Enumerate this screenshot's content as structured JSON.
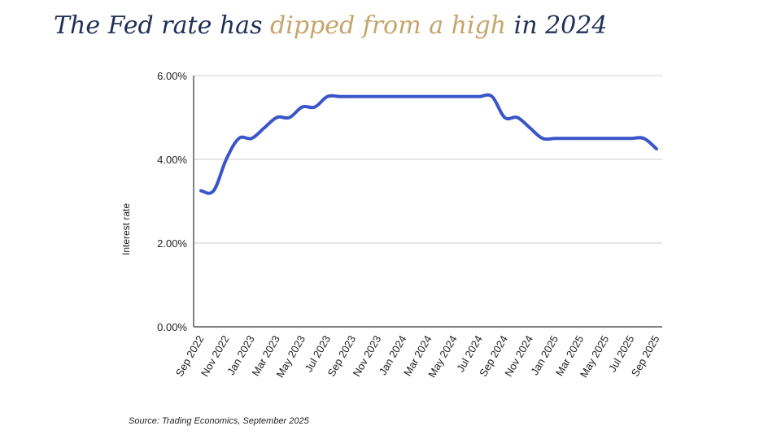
{
  "title": {
    "part1": "The Fed rate has ",
    "highlight": "dipped from a high",
    "part2": " in 2024"
  },
  "colors": {
    "title": "#1f2f57",
    "highlight": "#c6a56b",
    "line": "#3a55c8",
    "grid": "#cccccc"
  },
  "source": "Source: Trading Economics, September 2025",
  "chart_data": {
    "type": "line",
    "title": "",
    "xlabel": "",
    "ylabel": "Interest rate",
    "ylim": [
      0,
      6
    ],
    "yticks": [
      {
        "value": 0,
        "label": "0.00%"
      },
      {
        "value": 2,
        "label": "2.00%"
      },
      {
        "value": 4,
        "label": "4.00%"
      },
      {
        "value": 6,
        "label": "6.00%"
      }
    ],
    "categories": [
      "Sep 2022",
      "Nov 2022",
      "Jan 2023",
      "Mar 2023",
      "May 2023",
      "Jul 2023",
      "Sep 2023",
      "Nov 2023",
      "Jan 2024",
      "Mar 2024",
      "May 2024",
      "Jul 2024",
      "Sep 2024",
      "Nov 2024",
      "Jan 2025",
      "Mar 2025",
      "May 2025",
      "Jul 2025",
      "Sep 2025"
    ],
    "grid": true,
    "legend": "none",
    "series": [
      {
        "x": [
          "2022-09-01",
          "2022-10-01",
          "2022-11-01",
          "2022-12-01",
          "2023-01-01",
          "2023-02-01",
          "2023-03-01",
          "2023-04-01",
          "2023-05-01",
          "2023-06-01",
          "2023-07-01",
          "2023-08-01",
          "2023-09-01",
          "2023-10-01",
          "2023-11-01",
          "2023-12-01",
          "2024-01-01",
          "2024-02-01",
          "2024-03-01",
          "2024-04-01",
          "2024-05-01",
          "2024-06-01",
          "2024-07-01",
          "2024-08-01",
          "2024-09-01",
          "2024-10-01",
          "2024-11-01",
          "2024-12-01",
          "2025-01-01",
          "2025-02-01",
          "2025-03-01",
          "2025-04-01",
          "2025-05-01",
          "2025-06-01",
          "2025-07-01",
          "2025-08-01",
          "2025-09-01"
        ],
        "values": [
          3.25,
          3.25,
          4.0,
          4.5,
          4.5,
          4.75,
          5.0,
          5.0,
          5.25,
          5.25,
          5.5,
          5.5,
          5.5,
          5.5,
          5.5,
          5.5,
          5.5,
          5.5,
          5.5,
          5.5,
          5.5,
          5.5,
          5.5,
          5.5,
          5.0,
          5.0,
          4.75,
          4.5,
          4.5,
          4.5,
          4.5,
          4.5,
          4.5,
          4.5,
          4.5,
          4.5,
          4.25
        ]
      }
    ]
  }
}
